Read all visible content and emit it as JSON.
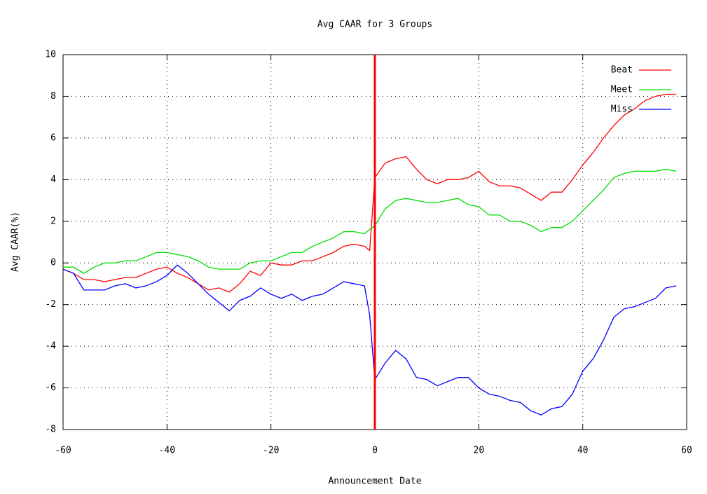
{
  "chart_data": {
    "type": "line",
    "title": "Avg CAAR for 3 Groups",
    "x_label": "Announcement Date",
    "y_label": "Avg CAAR(%)",
    "x": [
      -60,
      -58,
      -56,
      -54,
      -52,
      -50,
      -48,
      -46,
      -44,
      -42,
      -40,
      -38,
      -36,
      -34,
      -32,
      -30,
      -28,
      -26,
      -24,
      -22,
      -20,
      -18,
      -16,
      -14,
      -12,
      -10,
      -8,
      -6,
      -4,
      -2,
      -1,
      0,
      2,
      4,
      6,
      8,
      10,
      12,
      14,
      16,
      18,
      20,
      22,
      24,
      26,
      28,
      30,
      32,
      34,
      36,
      38,
      40,
      42,
      44,
      46,
      48,
      50,
      52,
      54,
      56,
      58
    ],
    "series": [
      {
        "name": "Beat",
        "color": "#ff0000",
        "values": [
          -0.3,
          -0.5,
          -0.8,
          -0.8,
          -0.9,
          -0.8,
          -0.7,
          -0.7,
          -0.5,
          -0.3,
          -0.2,
          -0.5,
          -0.7,
          -1.0,
          -1.3,
          -1.2,
          -1.4,
          -1.0,
          -0.4,
          -0.6,
          0.0,
          -0.1,
          -0.1,
          0.1,
          0.1,
          0.3,
          0.5,
          0.8,
          0.9,
          0.8,
          0.6,
          4.1,
          4.8,
          5.0,
          5.1,
          4.5,
          4.0,
          3.8,
          4.0,
          4.0,
          4.1,
          4.4,
          3.9,
          3.7,
          3.7,
          3.6,
          3.3,
          3.0,
          3.4,
          3.4,
          4.0,
          4.7,
          5.3,
          6.0,
          6.6,
          7.1,
          7.4,
          7.8,
          8.0,
          8.1,
          8.1
        ]
      },
      {
        "name": "Meet",
        "color": "#00dd00",
        "values": [
          -0.2,
          -0.2,
          -0.5,
          -0.2,
          0.0,
          0.0,
          0.1,
          0.1,
          0.3,
          0.5,
          0.5,
          0.4,
          0.3,
          0.1,
          -0.2,
          -0.3,
          -0.3,
          -0.3,
          0.0,
          0.1,
          0.1,
          0.3,
          0.5,
          0.5,
          0.8,
          1.0,
          1.2,
          1.5,
          1.5,
          1.4,
          1.6,
          1.8,
          2.6,
          3.0,
          3.1,
          3.0,
          2.9,
          2.9,
          3.0,
          3.1,
          2.8,
          2.7,
          2.3,
          2.3,
          2.0,
          2.0,
          1.8,
          1.5,
          1.7,
          1.7,
          2.0,
          2.5,
          3.0,
          3.5,
          4.1,
          4.3,
          4.4,
          4.4,
          4.4,
          4.5,
          4.4
        ]
      },
      {
        "name": "Miss",
        "color": "#0000ff",
        "values": [
          -0.3,
          -0.5,
          -1.3,
          -1.3,
          -1.3,
          -1.1,
          -1.0,
          -1.2,
          -1.1,
          -0.9,
          -0.6,
          -0.1,
          -0.5,
          -1.0,
          -1.5,
          -1.9,
          -2.3,
          -1.8,
          -1.6,
          -1.2,
          -1.5,
          -1.7,
          -1.5,
          -1.8,
          -1.6,
          -1.5,
          -1.2,
          -0.9,
          -1.0,
          -1.1,
          -2.5,
          -5.6,
          -4.8,
          -4.2,
          -4.6,
          -5.5,
          -5.6,
          -5.9,
          -5.7,
          -5.5,
          -5.5,
          -6.0,
          -6.3,
          -6.4,
          -6.6,
          -6.7,
          -7.1,
          -7.3,
          -7.0,
          -6.9,
          -6.3,
          -5.2,
          -4.6,
          -3.7,
          -2.6,
          -2.2,
          -2.1,
          -1.9,
          -1.7,
          -1.2,
          -1.1
        ]
      }
    ],
    "marker_x": 0,
    "marker_color": "#ff0000",
    "xlim": [
      -60,
      60
    ],
    "xticks": [
      -60,
      -40,
      -20,
      0,
      20,
      40,
      60
    ],
    "ylim": [
      -8,
      10
    ],
    "yticks": [
      -8,
      -6,
      -4,
      -2,
      0,
      2,
      4,
      6,
      8,
      10
    ],
    "grid": true,
    "legend": "top-right"
  }
}
